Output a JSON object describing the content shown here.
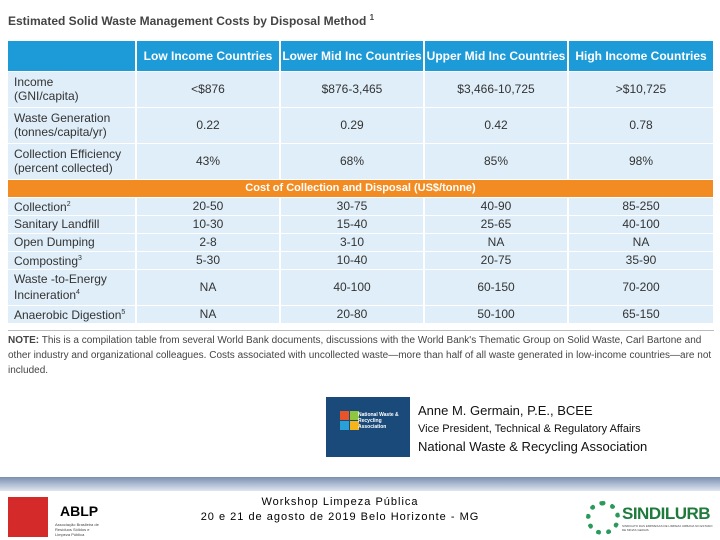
{
  "title": "Estimated Solid Waste Management Costs by Disposal Method",
  "title_note": "1",
  "columns": [
    "Low Income Countries",
    "Lower Mid Inc Countries",
    "Upper Mid Inc Countries",
    "High Income Countries"
  ],
  "rows": [
    {
      "label_line1": "Income",
      "label_line2": "(GNI/capita)",
      "sup": "",
      "values": [
        "<$876",
        "$876-3,465",
        "$3,466-10,725",
        ">$10,725"
      ]
    },
    {
      "label_line1": "Waste Generation",
      "label_line2": "(tonnes/capita/yr)",
      "sup": "",
      "values": [
        "0.22",
        "0.29",
        "0.42",
        "0.78"
      ]
    },
    {
      "label_line1": "Collection Efficiency",
      "label_line2": "(percent collected)",
      "sup": "",
      "values": [
        "43%",
        "68%",
        "85%",
        "98%"
      ]
    }
  ],
  "band_label": "Cost of Collection and Disposal (US$/tonne)",
  "cost_rows": [
    {
      "label_line1": "Collection",
      "label_line2": "",
      "sup": "2",
      "values": [
        "20-50",
        "30-75",
        "40-90",
        "85-250"
      ]
    },
    {
      "label_line1": "Sanitary Landfill",
      "label_line2": "",
      "sup": "",
      "values": [
        "10-30",
        "15-40",
        "25-65",
        "40-100"
      ]
    },
    {
      "label_line1": "Open Dumping",
      "label_line2": "",
      "sup": "",
      "values": [
        "2-8",
        "3-10",
        "NA",
        "NA"
      ]
    },
    {
      "label_line1": "Composting",
      "label_line2": "",
      "sup": "3",
      "values": [
        "5-30",
        "10-40",
        "20-75",
        "35-90"
      ]
    },
    {
      "label_line1": "Waste -to-Energy",
      "label_line2": "Incineration",
      "sup": "4",
      "values": [
        "NA",
        "40-100",
        "60-150",
        "70-200"
      ]
    },
    {
      "label_line1": "Anaerobic Digestion",
      "label_line2": "",
      "sup": "5",
      "values": [
        "NA",
        "20-80",
        "50-100",
        "65-150"
      ]
    }
  ],
  "note_label": "NOTE:",
  "note_text": "This is a compilation table from several World Bank documents, discussions with the World Bank's Thematic Group on Solid Waste, Carl Bartone and other industry and organizational colleagues. Costs associated with uncollected waste—more than half of all waste generated in low-income countries—are not included.",
  "presenter": {
    "name": "Anne M. Germain,",
    "credentials": " P.E., BCEE",
    "role": "Vice President, Technical & Regulatory Affairs",
    "org": "National Waste & Recycling Association"
  },
  "nwra_logo_text": "National Waste & Recycling Association",
  "footer": {
    "workshop": "Workshop Limpeza Pública",
    "date": "20 e 21 de agosto de 2019 Belo Horizonte - MG",
    "ablp": "ABLP",
    "ablp_sub": "Associação Brasileira de Resíduos Sólidos e Limpeza Pública",
    "sindilurb": "SINDILURB",
    "sindilurb_sub": "SINDICATO DAS EMPRESAS DE LIMPEZA URBANA NO ESTADO DE MINAS GERAIS"
  },
  "colors": {
    "header_blue": "#1d9ad8",
    "row_bg": "#dfeef8",
    "band_orange": "#f28b22",
    "sindilurb_green": "#1e7b3c",
    "ablp_red": "#d42a2a"
  }
}
